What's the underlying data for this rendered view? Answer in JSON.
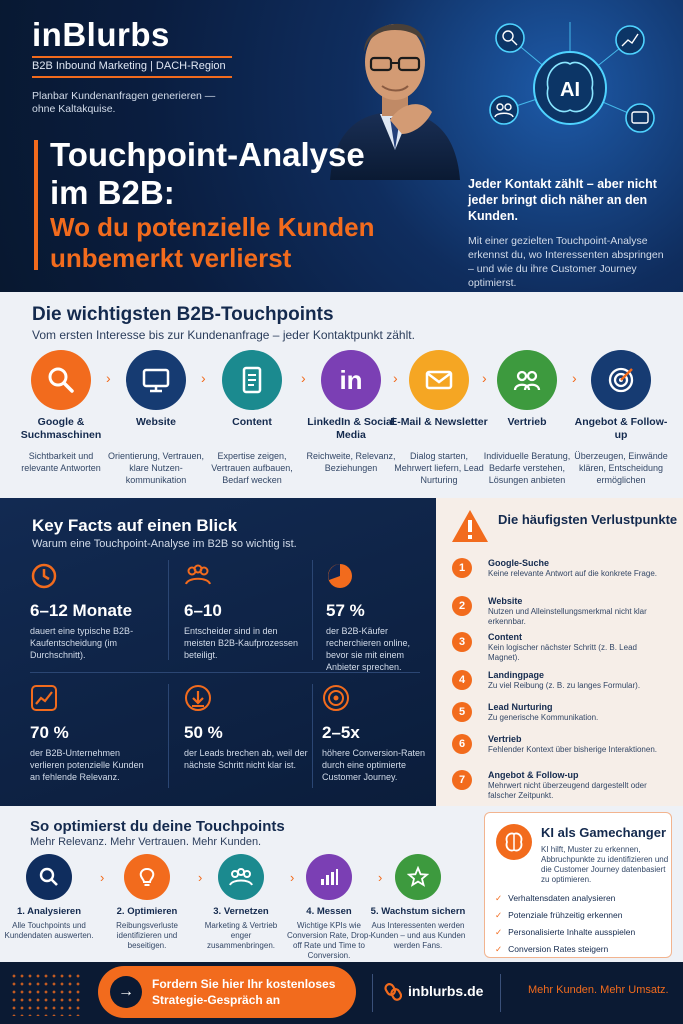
{
  "brand": {
    "name": "inBlurbs",
    "subtitle": "B2B Inbound Marketing | DACH-Region",
    "tagline": "Planbar Kundenanfragen generieren — ohne Kaltakquise.",
    "accent": "#f26b1d",
    "navy": "#0b1a33"
  },
  "hero": {
    "title_line1": "Touchpoint-Analyse",
    "title_line2": "im B2B:",
    "subtitle_line1": "Wo du potenzielle Kunden",
    "subtitle_line2": "unbemerkt verlierst",
    "right_heading": "Jeder Kontakt zählt – aber nicht jeder bringt dich näher an den Kunden.",
    "right_text": "Mit einer gezielten Touchpoint-Analyse erkennst du, wo Interessenten abspringen – und wie du ihre Customer Journey optimierst.",
    "ai_label": "AI"
  },
  "touchpoints": {
    "title": "Die wichtigsten B2B-Touchpoints",
    "subtitle": "Vom ersten Interesse bis zur Kundenanfrage – jeder Kontaktpunkt zählt.",
    "items": [
      {
        "name": "Google & Suchmaschinen",
        "desc": "Sichtbarkeit und relevante Antworten",
        "icon": "search-icon",
        "color": "#f26b1d"
      },
      {
        "name": "Website",
        "desc": "Orientierung, Vertrauen, klare Nutzen-kommunikation",
        "icon": "monitor-icon",
        "color": "#163b72"
      },
      {
        "name": "Content",
        "desc": "Expertise zeigen, Vertrauen aufbauen, Bedarf wecken",
        "icon": "document-icon",
        "color": "#1b8a8f"
      },
      {
        "name": "LinkedIn & Social Media",
        "desc": "Reichweite, Relevanz, Beziehungen",
        "icon": "linkedin-icon",
        "color": "#7b3fb4"
      },
      {
        "name": "E-Mail & Newsletter",
        "desc": "Dialog starten, Mehrwert liefern, Lead Nurturing",
        "icon": "mail-icon",
        "color": "#f5a623"
      },
      {
        "name": "Vertrieb",
        "desc": "Individuelle Beratung, Bedarfe verstehen, Lösungen anbieten",
        "icon": "people-icon",
        "color": "#3d9a3e"
      },
      {
        "name": "Angebot & Follow-up",
        "desc": "Überzeugen, Einwände klären, Entscheidung ermöglichen",
        "icon": "target-icon",
        "color": "#163b72"
      }
    ]
  },
  "key_facts": {
    "title": "Key Facts auf einen Blick",
    "subtitle": "Warum eine Touchpoint-Analyse im B2B so wichtig ist.",
    "facts": [
      {
        "value": "6–12 Monate",
        "text": "dauert eine typische B2B-Kaufentscheidung (im Durchschnitt).",
        "icon": "clock-icon"
      },
      {
        "value": "6–10",
        "text": "Entscheider sind in den meisten B2B-Kaufprozessen beteiligt.",
        "icon": "group-icon"
      },
      {
        "value": "57 %",
        "text": "der B2B-Käufer recherchieren online, bevor sie mit einem Anbieter sprechen.",
        "icon": "pie-icon"
      },
      {
        "value": "70 %",
        "text": "der B2B-Unternehmen verlieren potenzielle Kunden an fehlende Relevanz.",
        "icon": "trend-icon"
      },
      {
        "value": "50 %",
        "text": "der Leads brechen ab, weil der nächste Schritt nicht klar ist.",
        "icon": "download-icon"
      },
      {
        "value": "2–5x",
        "text": "höhere Conversion-Raten durch eine optimierte Customer Journey.",
        "icon": "bullseye-icon"
      }
    ]
  },
  "loss_points": {
    "title": "Die häufigsten Verlustpunkte",
    "items": [
      {
        "num": "1",
        "name": "Google-Suche",
        "desc": "Keine relevante Antwort auf die konkrete Frage."
      },
      {
        "num": "2",
        "name": "Website",
        "desc": "Nutzen und Alleinstellungsmerkmal nicht klar erkennbar."
      },
      {
        "num": "3",
        "name": "Content",
        "desc": "Kein logischer nächster Schritt (z. B. Lead Magnet)."
      },
      {
        "num": "4",
        "name": "Landingpage",
        "desc": "Zu viel Reibung (z. B. zu langes Formular)."
      },
      {
        "num": "5",
        "name": "Lead Nurturing",
        "desc": "Zu generische Kommunikation."
      },
      {
        "num": "6",
        "name": "Vertrieb",
        "desc": "Fehlender Kontext über bisherige Interaktionen."
      },
      {
        "num": "7",
        "name": "Angebot & Follow-up",
        "desc": "Mehrwert nicht überzeugend dargestellt oder falscher Zeitpunkt."
      }
    ]
  },
  "optimize": {
    "title": "So optimierst du deine Touchpoints",
    "subtitle": "Mehr Relevanz. Mehr Vertrauen. Mehr Kunden.",
    "steps": [
      {
        "name": "1. Analysieren",
        "desc": "Alle Touchpoints und Kundendaten auswerten.",
        "icon": "search-icon",
        "color": "#0f2d5e"
      },
      {
        "name": "2. Optimieren",
        "desc": "Reibungsverluste identifizieren und beseitigen.",
        "icon": "lightbulb-icon",
        "color": "#f26b1d"
      },
      {
        "name": "3. Vernetzen",
        "desc": "Marketing & Vertrieb enger zusammenbringen.",
        "icon": "network-icon",
        "color": "#1b8a8f"
      },
      {
        "name": "4. Messen",
        "desc": "Wichtige KPIs wie Conversion Rate, Drop-off Rate und Time to Conversion.",
        "icon": "bar-chart-icon",
        "color": "#7b3fb4"
      },
      {
        "name": "5. Wachstum sichern",
        "desc": "Aus Interessenten werden Kunden – und aus Kunden werden Fans.",
        "icon": "star-icon",
        "color": "#3d9a3e"
      }
    ]
  },
  "ai_box": {
    "title": "KI als Gamechanger",
    "text": "KI hilft, Muster zu erkennen, Abbruchpunkte zu identifizieren und die Customer Journey datenbasiert zu optimieren.",
    "checks": [
      "Verhaltensdaten analysieren",
      "Potenziale frühzeitig erkennen",
      "Personalisierte Inhalte ausspielen",
      "Conversion Rates steigern"
    ]
  },
  "footer": {
    "cta": "Fordern Sie hier Ihr kostenloses Strategie-Gespräch an",
    "site": "inblurbs.de",
    "tagline": "Mehr Kunden. Mehr Umsatz."
  }
}
